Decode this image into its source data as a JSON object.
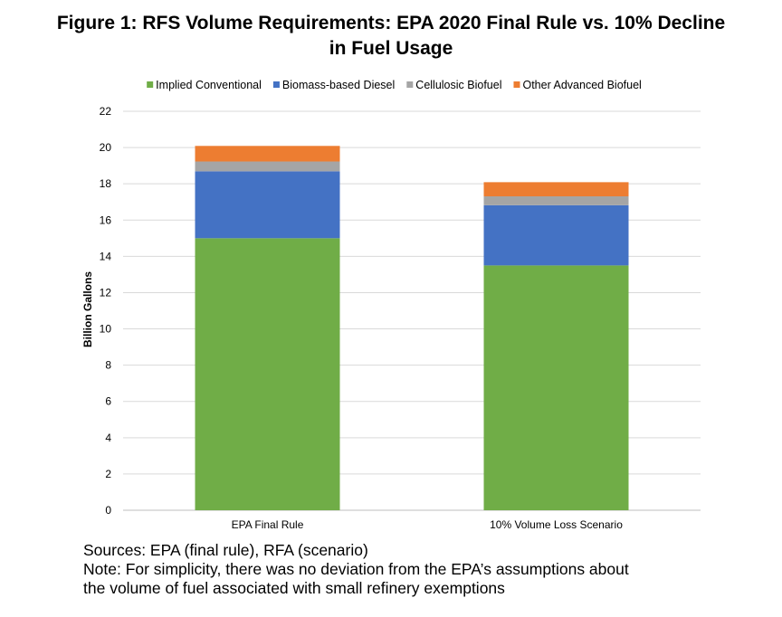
{
  "title_line1": "Figure 1: RFS Volume Requirements: EPA 2020 Final Rule vs. 10% Decline",
  "title_line2": "in Fuel Usage",
  "sources": "Sources: EPA (final rule), RFA (scenario)",
  "note_line1": "Note: For simplicity, there was no deviation from the EPA’s assumptions about",
  "note_line2": "the volume of fuel associated with small refinery exemptions",
  "chart_data": {
    "type": "bar",
    "stacked": true,
    "categories": [
      "EPA Final Rule",
      "10% Volume Loss Scenario"
    ],
    "series": [
      {
        "name": "Implied Conventional",
        "color": "#70ad47",
        "values": [
          15.0,
          13.5
        ]
      },
      {
        "name": "Biomass-based Diesel",
        "color": "#4472c4",
        "values": [
          3.69,
          3.32
        ]
      },
      {
        "name": "Cellulosic Biofuel",
        "color": "#a5a5a5",
        "values": [
          0.54,
          0.49
        ]
      },
      {
        "name": "Other Advanced Biofuel",
        "color": "#ed7d31",
        "values": [
          0.86,
          0.78
        ]
      }
    ],
    "ylabel": "Billion Gallons",
    "ylim": [
      0,
      22
    ],
    "yticks": [
      "0",
      "2",
      "4",
      "6",
      "8",
      "10",
      "12",
      "14",
      "16",
      "18",
      "20",
      "22"
    ],
    "grid": true,
    "legend_position": "top"
  }
}
